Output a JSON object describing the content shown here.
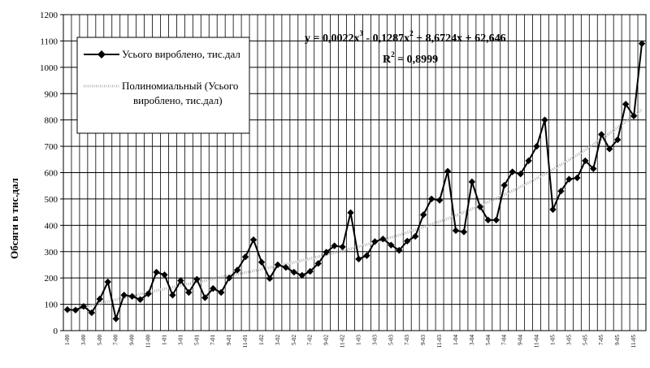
{
  "chart_data": {
    "type": "line",
    "ylabel": "Обсяги в тис.дал",
    "ylim": [
      0,
      1200
    ],
    "ytick_step": 100,
    "grid": true,
    "legend_position": "top-left",
    "x_tick_labels": [
      "1-00",
      "3-00",
      "5-00",
      "7-00",
      "9-00",
      "11-00",
      "1-01",
      "3-01",
      "5-01",
      "7-01",
      "9-01",
      "11-01",
      "1-02",
      "3-02",
      "5-02",
      "7-02",
      "9-02",
      "11-02",
      "1-03",
      "3-03",
      "5-03",
      "7-03",
      "9-03",
      "11-03",
      "1-04",
      "3-04",
      "5-04",
      "7-04",
      "9-04",
      "11-04",
      "1-05",
      "3-05",
      "5-05",
      "7-05",
      "9-05",
      "11-05"
    ],
    "series": [
      {
        "name": "Усього вироблено, тис.дал",
        "color": "#000000",
        "marker": "diamond",
        "values": [
          80,
          78,
          92,
          68,
          120,
          185,
          45,
          135,
          130,
          118,
          140,
          222,
          212,
          135,
          190,
          145,
          195,
          125,
          160,
          145,
          200,
          230,
          280,
          345,
          260,
          198,
          250,
          240,
          222,
          210,
          225,
          255,
          298,
          322,
          318,
          448,
          272,
          285,
          338,
          348,
          325,
          305,
          340,
          358,
          440,
          500,
          495,
          605,
          380,
          375,
          565,
          470,
          420,
          420,
          552,
          603,
          595,
          645,
          700,
          800,
          460,
          530,
          575,
          580,
          645,
          615,
          745,
          690,
          725,
          860,
          815,
          1090
        ]
      },
      {
        "name": "Полиномиальный (Усього вироблено, тис.дал)",
        "color": "#b5b5b5",
        "style": "dotted-trendline",
        "coefficients": [
          0.0022,
          -0.1287,
          8.6724,
          62.646
        ]
      }
    ],
    "annotations": {
      "equation": {
        "prefix": "y = 0,0022x",
        "sup1": "3",
        "mid1": " - 0,1287x",
        "sup2": "2",
        "suffix": " + 8,6724x + 62,646"
      },
      "r_squared": {
        "prefix": "R",
        "sup": "2",
        "suffix": " = 0,8999"
      }
    }
  }
}
